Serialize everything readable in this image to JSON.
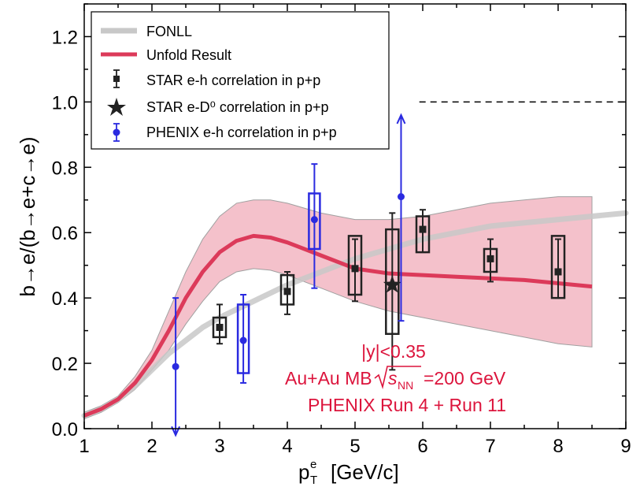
{
  "chart_data": {
    "type": "scatter",
    "xlabel": "p",
    "xlabel_sup": "e",
    "xlabel_sub": "T",
    "xlabel_unit": "[GeV/c]",
    "ylabel": "b→e/(b→e+c→e)",
    "xlim": [
      1,
      9
    ],
    "ylim": [
      0,
      1.3
    ],
    "xticks": [
      "1",
      "2",
      "3",
      "4",
      "5",
      "6",
      "7",
      "8",
      "9"
    ],
    "yticks": [
      "0.0",
      "0.2",
      "0.4",
      "0.6",
      "0.8",
      "1.0",
      "1.2"
    ],
    "reference_line": {
      "y": 1.0,
      "style": "dashed"
    },
    "legend_position": "top-left",
    "colors": {
      "fonll": "#c8c8c8",
      "unfold": "#dc3a5a",
      "band": "#f2b6c2",
      "star": "#222222",
      "phenix": "#2a2ae0",
      "annotation": "#dc143c"
    },
    "fonll": {
      "name": "FONLL",
      "x": [
        1.0,
        1.25,
        1.5,
        1.75,
        2.0,
        2.25,
        2.5,
        2.75,
        3.0,
        3.5,
        4.0,
        4.5,
        5.0,
        5.5,
        6.0,
        6.5,
        7.0,
        7.5,
        8.0,
        8.5,
        9.0
      ],
      "y": [
        0.04,
        0.06,
        0.09,
        0.13,
        0.18,
        0.23,
        0.27,
        0.31,
        0.34,
        0.39,
        0.44,
        0.48,
        0.52,
        0.55,
        0.58,
        0.6,
        0.62,
        0.63,
        0.64,
        0.65,
        0.66
      ]
    },
    "unfold": {
      "name": "Unfold Result",
      "x": [
        1.0,
        1.25,
        1.5,
        1.75,
        2.0,
        2.25,
        2.5,
        2.75,
        3.0,
        3.25,
        3.5,
        3.75,
        4.0,
        4.5,
        5.0,
        5.5,
        6.0,
        6.5,
        7.0,
        7.5,
        8.0,
        8.5
      ],
      "y": [
        0.04,
        0.06,
        0.09,
        0.14,
        0.21,
        0.3,
        0.4,
        0.48,
        0.54,
        0.575,
        0.59,
        0.585,
        0.57,
        0.53,
        0.49,
        0.475,
        0.47,
        0.465,
        0.46,
        0.455,
        0.445,
        0.435
      ],
      "band_low": [
        0.03,
        0.05,
        0.08,
        0.12,
        0.18,
        0.24,
        0.32,
        0.39,
        0.45,
        0.48,
        0.49,
        0.485,
        0.47,
        0.43,
        0.39,
        0.36,
        0.34,
        0.32,
        0.3,
        0.28,
        0.26,
        0.25
      ],
      "band_high": [
        0.05,
        0.07,
        0.1,
        0.16,
        0.24,
        0.36,
        0.48,
        0.58,
        0.65,
        0.69,
        0.7,
        0.7,
        0.69,
        0.66,
        0.64,
        0.64,
        0.65,
        0.67,
        0.69,
        0.7,
        0.71,
        0.71
      ]
    },
    "star_eh": {
      "name": "STAR e-h correlation in p+p",
      "points": [
        {
          "x": 3.0,
          "y": 0.31,
          "err_lo": 0.05,
          "err_hi": 0.07,
          "sys_lo": 0.03,
          "sys_hi": 0.03
        },
        {
          "x": 4.0,
          "y": 0.42,
          "err_lo": 0.07,
          "err_hi": 0.06,
          "sys_lo": 0.04,
          "sys_hi": 0.05
        },
        {
          "x": 5.0,
          "y": 0.49,
          "err_lo": 0.1,
          "err_hi": 0.09,
          "sys_lo": 0.08,
          "sys_hi": 0.1
        },
        {
          "x": 6.0,
          "y": 0.61,
          "err_lo": 0.07,
          "err_hi": 0.06,
          "sys_lo": 0.07,
          "sys_hi": 0.04
        },
        {
          "x": 7.0,
          "y": 0.52,
          "err_lo": 0.07,
          "err_hi": 0.06,
          "sys_lo": 0.04,
          "sys_hi": 0.03
        },
        {
          "x": 8.0,
          "y": 0.48,
          "err_lo": 0.08,
          "err_hi": 0.1,
          "sys_lo": 0.08,
          "sys_hi": 0.11
        }
      ]
    },
    "star_ed0": {
      "name": "STAR e-D⁰ correlation in p+p",
      "points": [
        {
          "x": 5.55,
          "y": 0.44,
          "err_lo": 0.26,
          "err_hi": 0.22,
          "sys_lo": 0.15,
          "sys_hi": 0.17
        }
      ]
    },
    "phenix_eh": {
      "name": "PHENIX e-h correlation in p+p",
      "points": [
        {
          "x": 2.35,
          "y": 0.19,
          "err_lo": 0.21,
          "err_hi": 0.21,
          "sys_lo": 0.0,
          "sys_hi": 0.0,
          "arrow_down": true
        },
        {
          "x": 3.35,
          "y": 0.27,
          "err_lo": 0.13,
          "err_hi": 0.14,
          "sys_lo": 0.1,
          "sys_hi": 0.11
        },
        {
          "x": 4.4,
          "y": 0.64,
          "err_lo": 0.21,
          "err_hi": 0.17,
          "sys_lo": 0.09,
          "sys_hi": 0.08
        },
        {
          "x": 5.68,
          "y": 0.71,
          "err_lo": 0.38,
          "err_hi": 0.25,
          "sys_lo": 0.0,
          "sys_hi": 0.0,
          "arrow_up": true
        }
      ]
    },
    "annotations": [
      "|y|<0.35",
      "Au+Au MB",
      "s",
      "NN",
      "=200 GeV",
      "PHENIX Run 4 + Run 11"
    ]
  }
}
